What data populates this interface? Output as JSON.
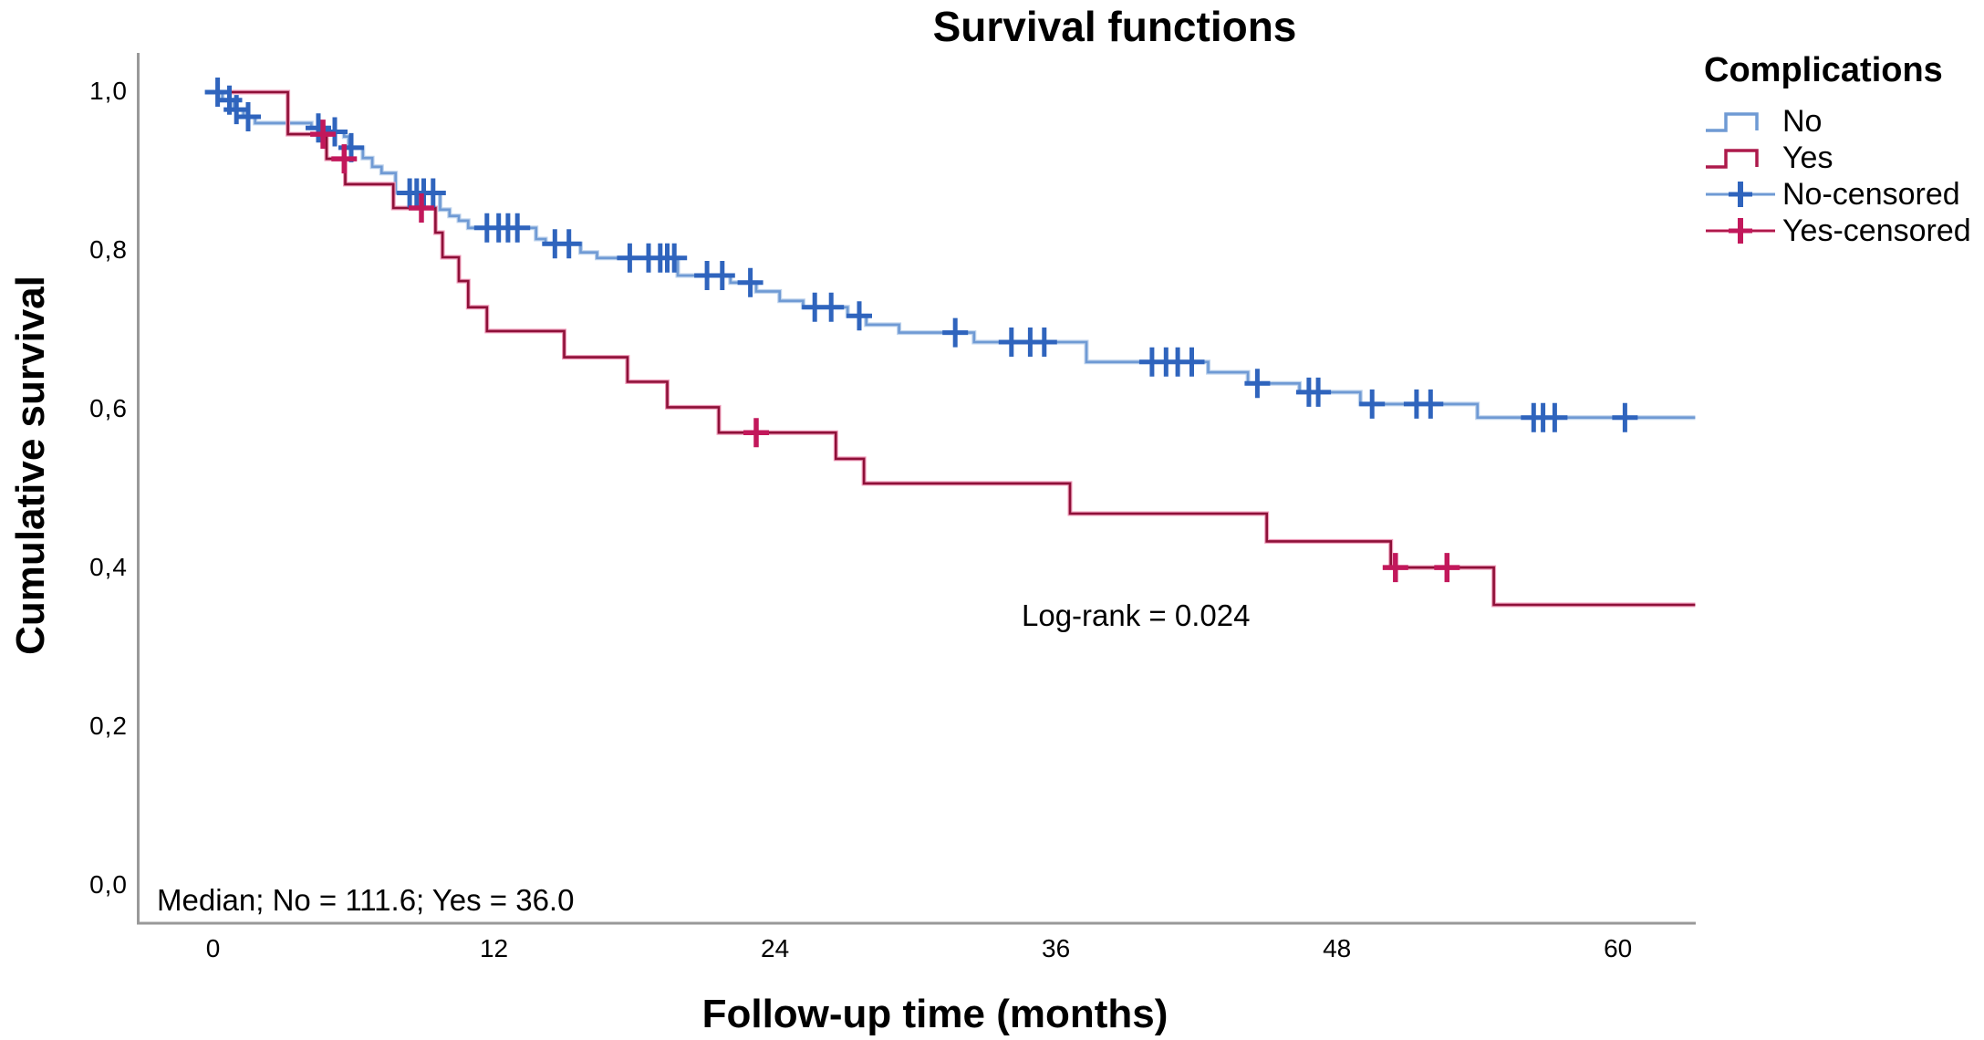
{
  "title": "Survival functions",
  "annotations": {
    "log_rank": "Log-rank = 0.024",
    "median": "Median; No = 111.6; Yes = 36.0"
  },
  "legend": {
    "title": "Complications",
    "items": [
      {
        "label": "No",
        "series": "no",
        "glyph": "step"
      },
      {
        "label": "Yes",
        "series": "yes",
        "glyph": "step"
      },
      {
        "label": "No-censored",
        "series": "no",
        "glyph": "censored"
      },
      {
        "label": "Yes-censored",
        "series": "yes",
        "glyph": "censored"
      }
    ]
  },
  "colors": {
    "no_line": "#6f9ad4",
    "no_halo": "#bdd2ec",
    "no_censored": "#2f64bd",
    "yes_line": "#8e1038",
    "yes_halo": "#ef9cba",
    "yes_censored": "#c2185b",
    "yes_legend": "#ad1a4b",
    "axis": "#999999"
  },
  "chart_data": {
    "type": "line",
    "subtype": "kaplan-meier-step-function",
    "title": "Survival functions",
    "xlabel": "Follow-up time (months)",
    "ylabel": "Cumulative survival",
    "xlim": [
      -3,
      63.5
    ],
    "ylim": [
      0.0,
      1.04
    ],
    "grid": false,
    "legend_position": "top-right",
    "x_ticks": [
      0,
      12,
      24,
      36,
      48,
      60
    ],
    "y_ticks": [
      {
        "label": "1,0",
        "value": 1.0
      },
      {
        "label": "0,8",
        "value": 0.8
      },
      {
        "label": "0,6",
        "value": 0.6
      },
      {
        "label": "0,4",
        "value": 0.4
      },
      {
        "label": "0,2",
        "value": 0.2
      },
      {
        "label": "0,0",
        "value": 0.0
      }
    ],
    "curve_end_month": 63.3,
    "series": [
      {
        "name": "No",
        "steps": [
          [
            0,
            1.0
          ],
          [
            0.4,
            0.99
          ],
          [
            0.9,
            0.978
          ],
          [
            1.3,
            0.969
          ],
          [
            1.8,
            0.961
          ],
          [
            4.2,
            0.955
          ],
          [
            4.9,
            0.95
          ],
          [
            5.6,
            0.944
          ],
          [
            5.8,
            0.93
          ],
          [
            6.4,
            0.917
          ],
          [
            6.8,
            0.906
          ],
          [
            7.2,
            0.898
          ],
          [
            7.8,
            0.873
          ],
          [
            9.7,
            0.852
          ],
          [
            10.1,
            0.844
          ],
          [
            10.5,
            0.838
          ],
          [
            10.9,
            0.829
          ],
          [
            13.8,
            0.815
          ],
          [
            14.2,
            0.809
          ],
          [
            15.7,
            0.798
          ],
          [
            16.4,
            0.791
          ],
          [
            19.85,
            0.769
          ],
          [
            22.1,
            0.76
          ],
          [
            23.2,
            0.749
          ],
          [
            24.2,
            0.737
          ],
          [
            25.2,
            0.729
          ],
          [
            27.1,
            0.718
          ],
          [
            27.9,
            0.707
          ],
          [
            29.3,
            0.697
          ],
          [
            32.5,
            0.685
          ],
          [
            37.3,
            0.66
          ],
          [
            42.5,
            0.647
          ],
          [
            44.2,
            0.633
          ],
          [
            46.4,
            0.622
          ],
          [
            49.0,
            0.607
          ],
          [
            54.0,
            0.59
          ]
        ],
        "censored_months": [
          0.2,
          0.7,
          1.0,
          1.5,
          4.5,
          5.2,
          5.9,
          8.4,
          8.7,
          9.0,
          9.4,
          11.7,
          12.2,
          12.6,
          13.0,
          14.6,
          15.2,
          17.8,
          18.6,
          19.1,
          19.4,
          19.7,
          21.1,
          21.75,
          22.95,
          25.7,
          26.4,
          27.6,
          31.7,
          34.1,
          34.9,
          35.5,
          40.1,
          40.7,
          41.2,
          41.8,
          44.6,
          46.8,
          47.2,
          49.5,
          51.4,
          52.0,
          56.4,
          56.8,
          57.3,
          60.3
        ],
        "median": 111.6
      },
      {
        "name": "Yes",
        "steps": [
          [
            0,
            1.0
          ],
          [
            3.2,
            0.947
          ],
          [
            4.85,
            0.916
          ],
          [
            5.65,
            0.884
          ],
          [
            7.7,
            0.854
          ],
          [
            9.5,
            0.823
          ],
          [
            9.8,
            0.792
          ],
          [
            10.5,
            0.762
          ],
          [
            10.9,
            0.729
          ],
          [
            11.7,
            0.699
          ],
          [
            15.0,
            0.666
          ],
          [
            17.7,
            0.635
          ],
          [
            19.4,
            0.603
          ],
          [
            21.6,
            0.571
          ],
          [
            26.6,
            0.538
          ],
          [
            27.8,
            0.507
          ],
          [
            36.6,
            0.469
          ],
          [
            45.0,
            0.434
          ],
          [
            50.3,
            0.401
          ],
          [
            54.7,
            0.354
          ]
        ],
        "censored_months": [
          4.7,
          5.6,
          8.9,
          23.2,
          50.5,
          52.7
        ],
        "median": 36.0
      }
    ],
    "annotations": [
      "Log-rank = 0.024",
      "Median; No = 111.6; Yes = 36.0"
    ]
  }
}
